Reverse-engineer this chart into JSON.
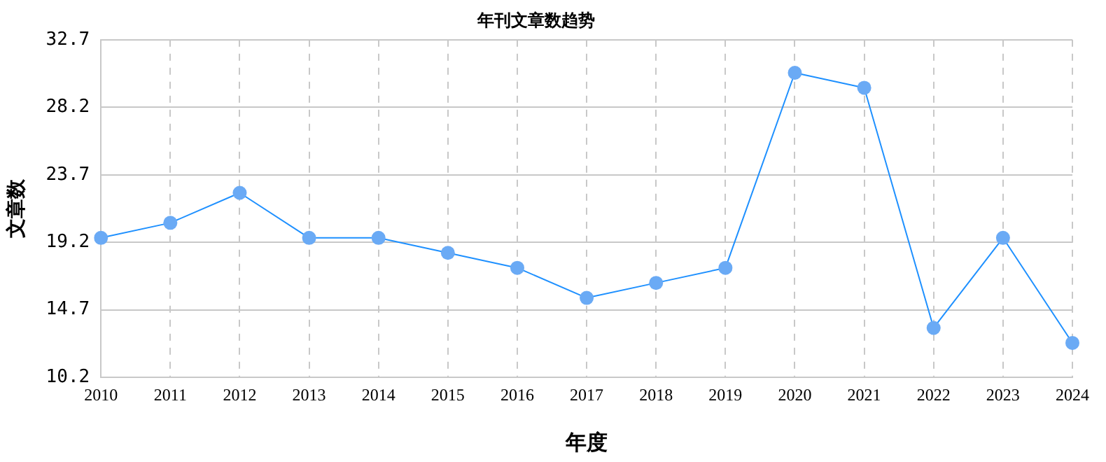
{
  "chart_data": {
    "type": "line",
    "title": "年刊文章数趋势",
    "xlabel": "年度",
    "ylabel": "文章数",
    "categories": [
      "2010",
      "2011",
      "2012",
      "2013",
      "2014",
      "2015",
      "2016",
      "2017",
      "2018",
      "2019",
      "2020",
      "2021",
      "2022",
      "2023",
      "2024"
    ],
    "series": [
      {
        "color": "#1e90ff",
        "values": [
          19.5,
          20.5,
          22.5,
          19.5,
          19.5,
          18.5,
          17.5,
          15.5,
          16.5,
          17.5,
          30.5,
          29.5,
          13.5,
          19.5,
          12.5
        ]
      }
    ],
    "ylim": [
      10.2,
      32.7
    ],
    "yticks": [
      10.2,
      14.7,
      19.2,
      23.7,
      28.2,
      32.7
    ],
    "grid": true,
    "legend": false,
    "marker": "circle",
    "line_style": "solid"
  }
}
